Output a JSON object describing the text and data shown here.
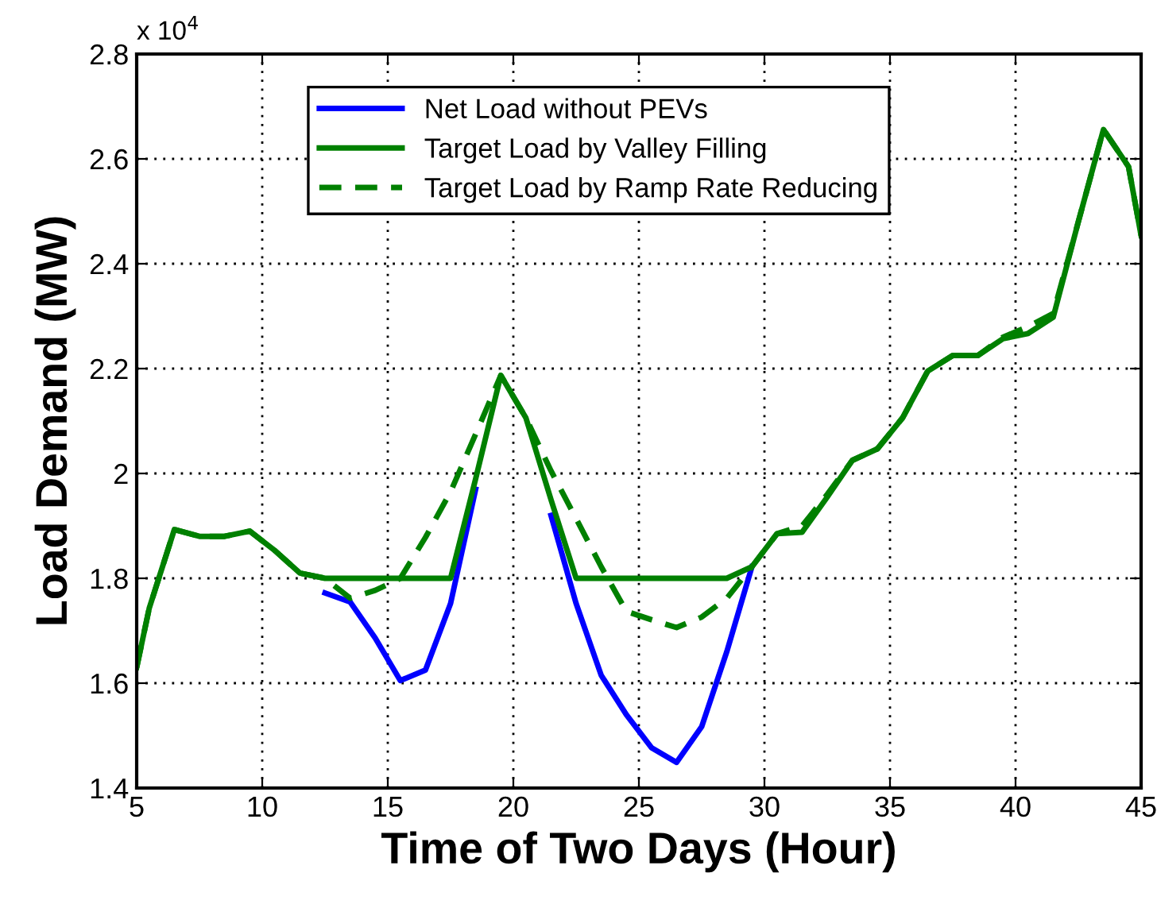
{
  "chart_data": {
    "type": "line",
    "xlabel": "Time of Two Days (Hour)",
    "ylabel": "Load Demand (MW)",
    "annotations": [
      "x 10$^{4}$"
    ],
    "x": [
      5,
      5.5,
      6.5,
      7.5,
      8.5,
      9.5,
      10.5,
      11.5,
      12.5,
      13.5,
      14.5,
      15.5,
      16.5,
      17.5,
      18.5,
      19.5,
      20.5,
      21.5,
      22.5,
      23.5,
      24.5,
      25.5,
      26.5,
      27.5,
      28.5,
      29.5,
      30.5,
      31.5,
      32.5,
      33.5,
      34.5,
      35.5,
      36.5,
      37.5,
      38.5,
      39.5,
      40.5,
      41.5,
      42.5,
      43.5,
      44.5,
      45
    ],
    "series": [
      {
        "name": "Net Load without PEVs",
        "color": "#0000ff",
        "line_style": "solid",
        "x": [
          12.5,
          13.5,
          14.5,
          15.5,
          16.5,
          17.5,
          18.5,
          19.5,
          20.5,
          21.5,
          22.5,
          23.5,
          24.5,
          25.5,
          26.5,
          27.5,
          28.5,
          29.5
        ],
        "values": [
          1.772,
          1.755,
          1.686,
          1.605,
          1.625,
          1.752,
          1.97,
          null,
          null,
          1.92,
          1.752,
          1.615,
          1.54,
          1.477,
          1.449,
          1.517,
          1.66,
          1.822
        ]
      },
      {
        "name": "Target Load by Valley Filling",
        "color": "#008000",
        "line_style": "solid",
        "values": [
          1.63,
          1.743,
          1.893,
          1.88,
          1.88,
          1.89,
          1.853,
          1.81,
          1.8,
          1.8,
          1.8,
          1.8,
          1.8,
          1.8,
          1.99,
          2.187,
          2.106,
          1.95,
          1.8,
          1.8,
          1.8,
          1.8,
          1.8,
          1.8,
          1.8,
          1.822,
          1.885,
          1.888,
          1.955,
          2.025,
          2.047,
          2.106,
          2.195,
          2.225,
          2.225,
          2.257,
          2.267,
          2.298,
          2.48,
          2.656,
          2.585,
          2.454
        ]
      },
      {
        "name": "Target Load by Ramp Rate Reducing",
        "color": "#008000",
        "line_style": "dashed",
        "values": [
          1.63,
          1.743,
          1.893,
          1.88,
          1.88,
          1.89,
          1.853,
          1.81,
          1.8,
          1.762,
          1.777,
          1.8,
          1.878,
          1.965,
          2.075,
          2.187,
          2.106,
          2.005,
          1.914,
          1.822,
          1.737,
          1.721,
          1.706,
          1.726,
          1.762,
          1.822,
          1.885,
          1.9,
          1.96,
          2.025,
          2.047,
          2.106,
          2.195,
          2.225,
          2.225,
          2.26,
          2.28,
          2.305,
          2.48,
          2.656,
          2.585,
          2.454
        ]
      }
    ],
    "xlim": [
      5,
      45
    ],
    "xticks": [
      5,
      10,
      15,
      20,
      25,
      30,
      35,
      40,
      45
    ],
    "ylim": [
      1.4,
      2.8
    ],
    "yticks": [
      1.4,
      1.6,
      1.8,
      2,
      2.2,
      2.4,
      2.6,
      2.8
    ],
    "grid": true,
    "legend": "top",
    "marker": "none"
  }
}
